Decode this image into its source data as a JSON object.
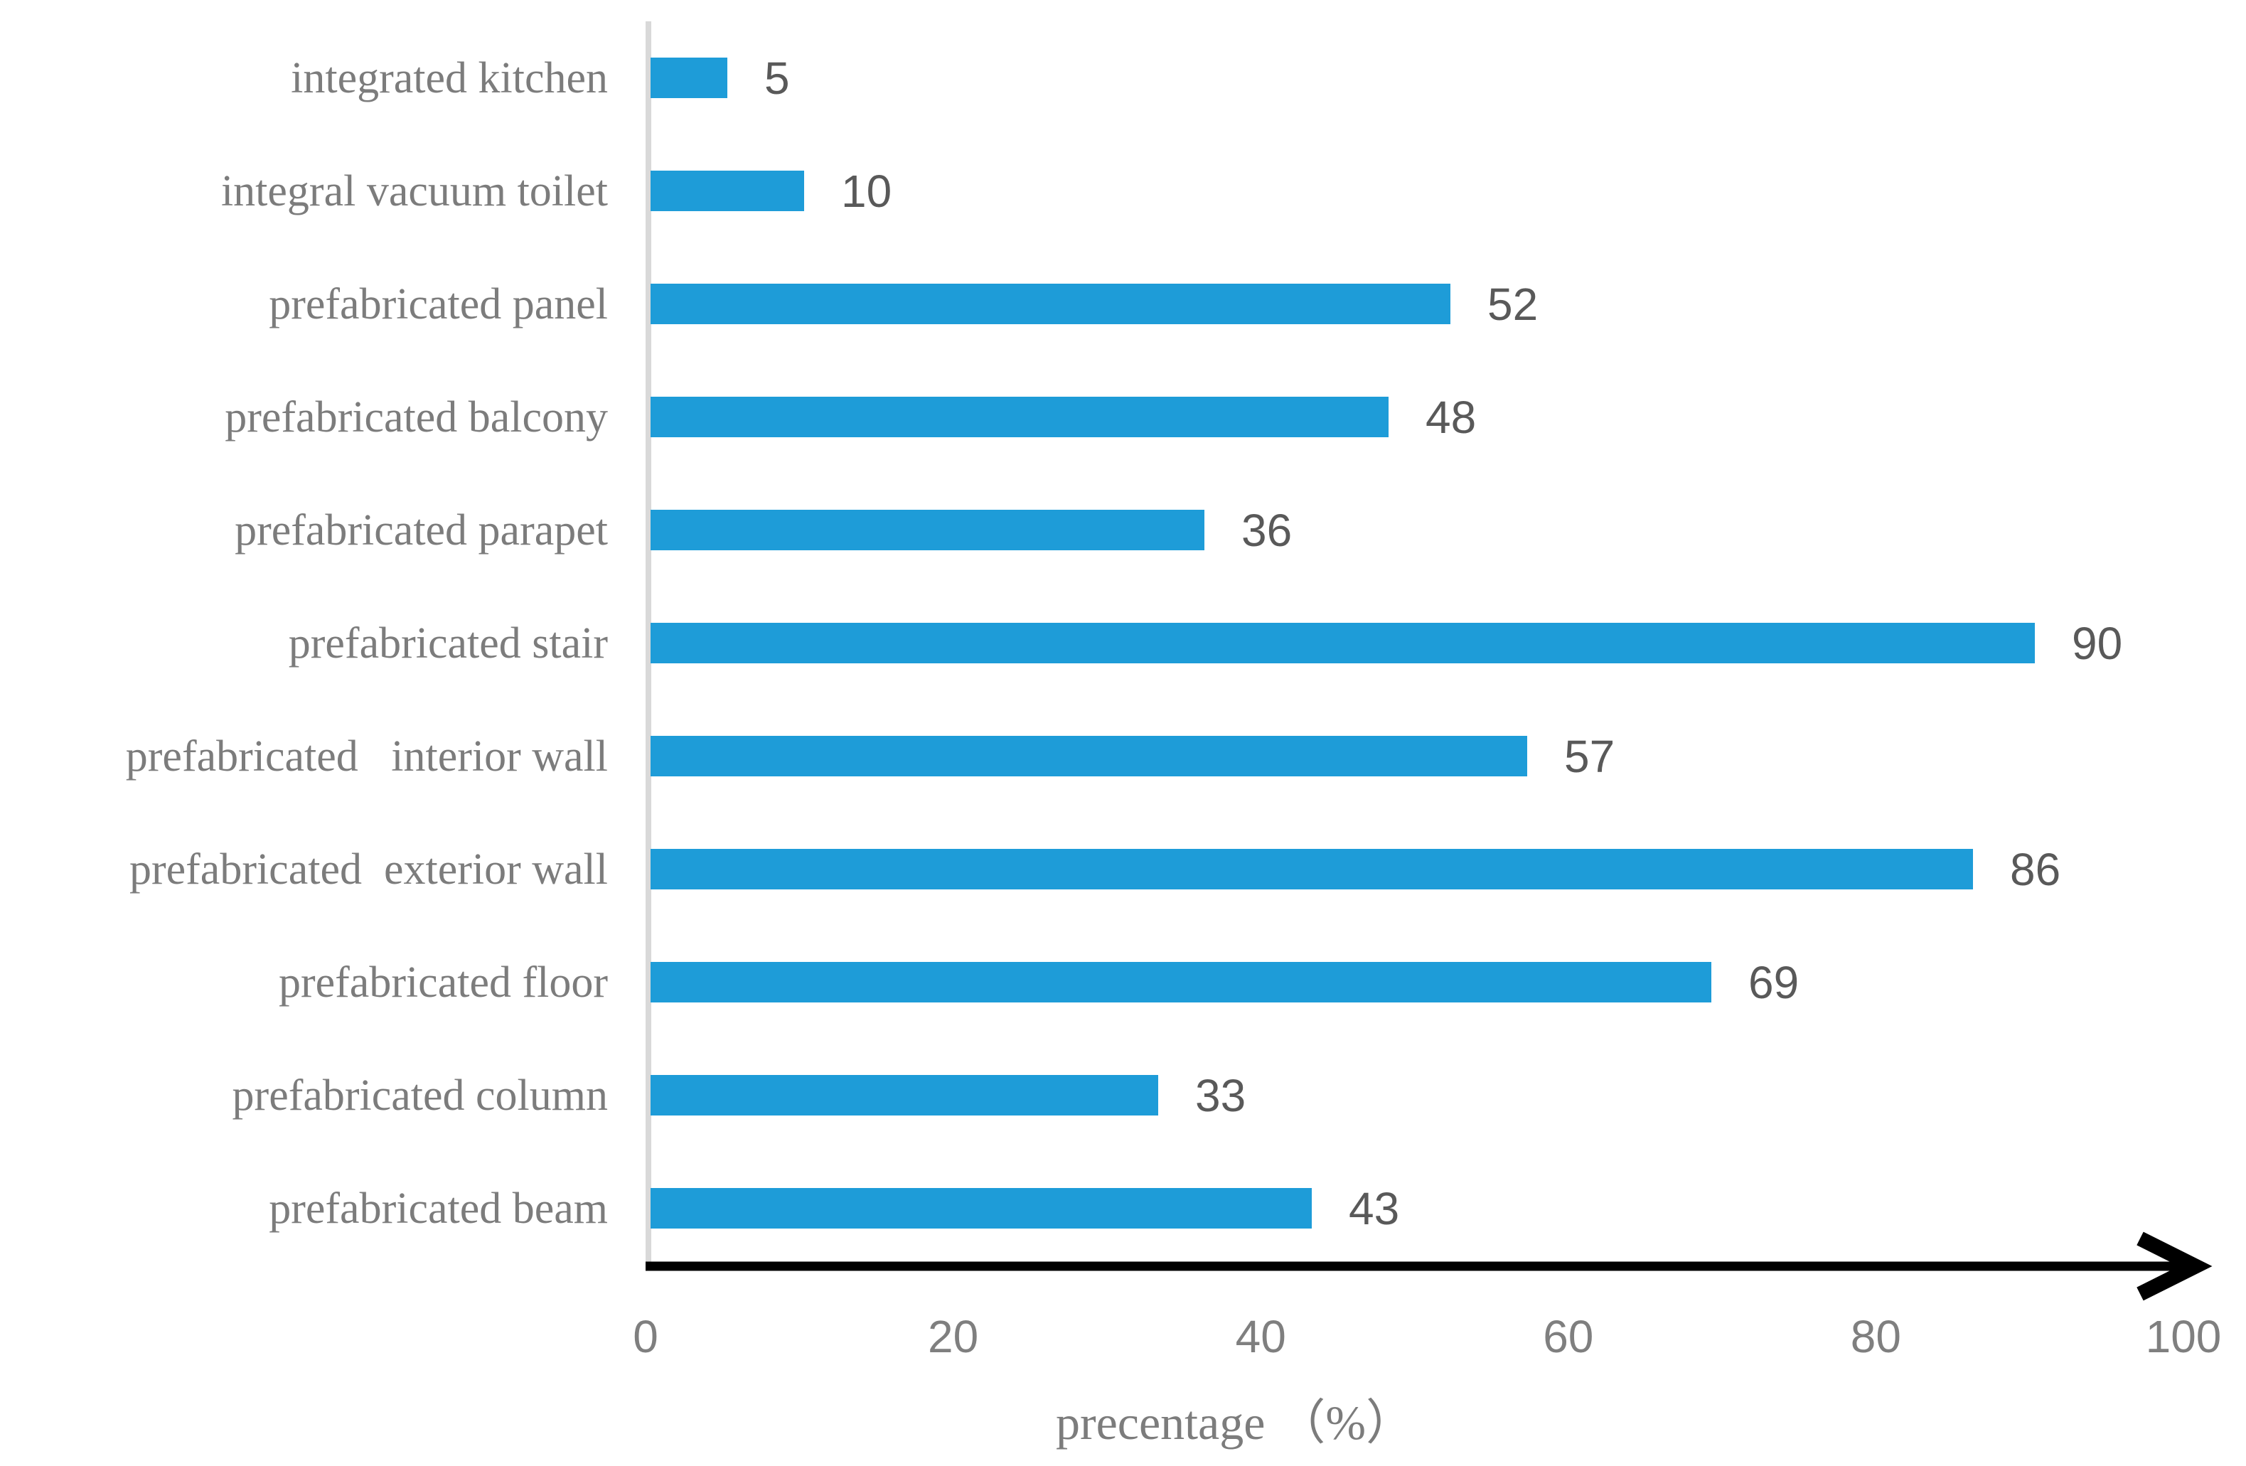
{
  "chart_data": {
    "type": "bar",
    "orientation": "horizontal",
    "categories": [
      "integrated kitchen",
      "integral vacuum toilet",
      "prefabricated panel",
      "prefabricated balcony",
      "prefabricated parapet",
      "prefabricated stair",
      "prefabricated   interior wall",
      "prefabricated  exterior wall",
      "prefabricated floor",
      "prefabricated column",
      "prefabricated beam"
    ],
    "values": [
      5,
      10,
      52,
      48,
      36,
      90,
      57,
      86,
      69,
      33,
      43
    ],
    "title": "",
    "xlabel": "precentage （%）",
    "ylabel": "",
    "xlim": [
      0,
      100
    ],
    "x_ticks": [
      0,
      20,
      40,
      60,
      80,
      100
    ],
    "grid": false,
    "legend": "none",
    "data_labels": "outside-end"
  },
  "colors": {
    "bar": "#1e9cd8",
    "category_label": "#7c7c7c",
    "value_label": "#595959",
    "tick_label": "#7f7f7f",
    "vertical_axis_line": "#d9d9d9",
    "x_axis_arrow": "#000000",
    "background": "#ffffff"
  }
}
